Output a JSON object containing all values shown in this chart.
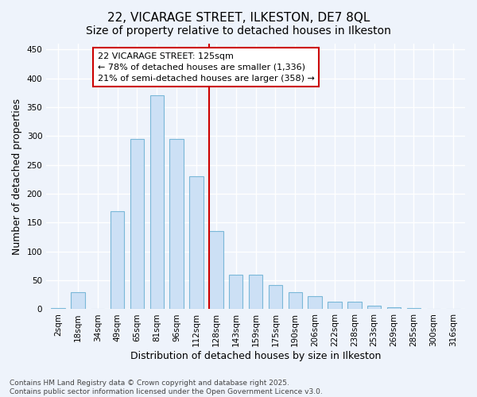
{
  "title": "22, VICARAGE STREET, ILKESTON, DE7 8QL",
  "subtitle": "Size of property relative to detached houses in Ilkeston",
  "xlabel": "Distribution of detached houses by size in Ilkeston",
  "ylabel": "Number of detached properties",
  "categories": [
    "2sqm",
    "18sqm",
    "34sqm",
    "49sqm",
    "65sqm",
    "81sqm",
    "96sqm",
    "112sqm",
    "128sqm",
    "143sqm",
    "159sqm",
    "175sqm",
    "190sqm",
    "206sqm",
    "222sqm",
    "238sqm",
    "253sqm",
    "269sqm",
    "285sqm",
    "300sqm",
    "316sqm"
  ],
  "values": [
    2,
    30,
    0,
    170,
    295,
    370,
    295,
    230,
    135,
    60,
    60,
    42,
    30,
    22,
    13,
    13,
    6,
    4,
    2,
    1,
    0
  ],
  "bar_color": "#cce0f5",
  "bar_edge_color": "#7ab8d8",
  "vline_color": "#cc0000",
  "annotation_title": "22 VICARAGE STREET: 125sqm",
  "annotation_line1": "← 78% of detached houses are smaller (1,336)",
  "annotation_line2": "21% of semi-detached houses are larger (358) →",
  "annotation_box_facecolor": "#ffffff",
  "annotation_box_edgecolor": "#cc0000",
  "background_color": "#eef3fb",
  "grid_color": "#ffffff",
  "footer1": "Contains HM Land Registry data © Crown copyright and database right 2025.",
  "footer2": "Contains public sector information licensed under the Open Government Licence v3.0.",
  "ylim": [
    0,
    460
  ],
  "yticks": [
    0,
    50,
    100,
    150,
    200,
    250,
    300,
    350,
    400,
    450
  ],
  "title_fontsize": 11,
  "subtitle_fontsize": 10,
  "xlabel_fontsize": 9,
  "ylabel_fontsize": 9,
  "tick_fontsize": 7.5,
  "footer_fontsize": 6.5
}
